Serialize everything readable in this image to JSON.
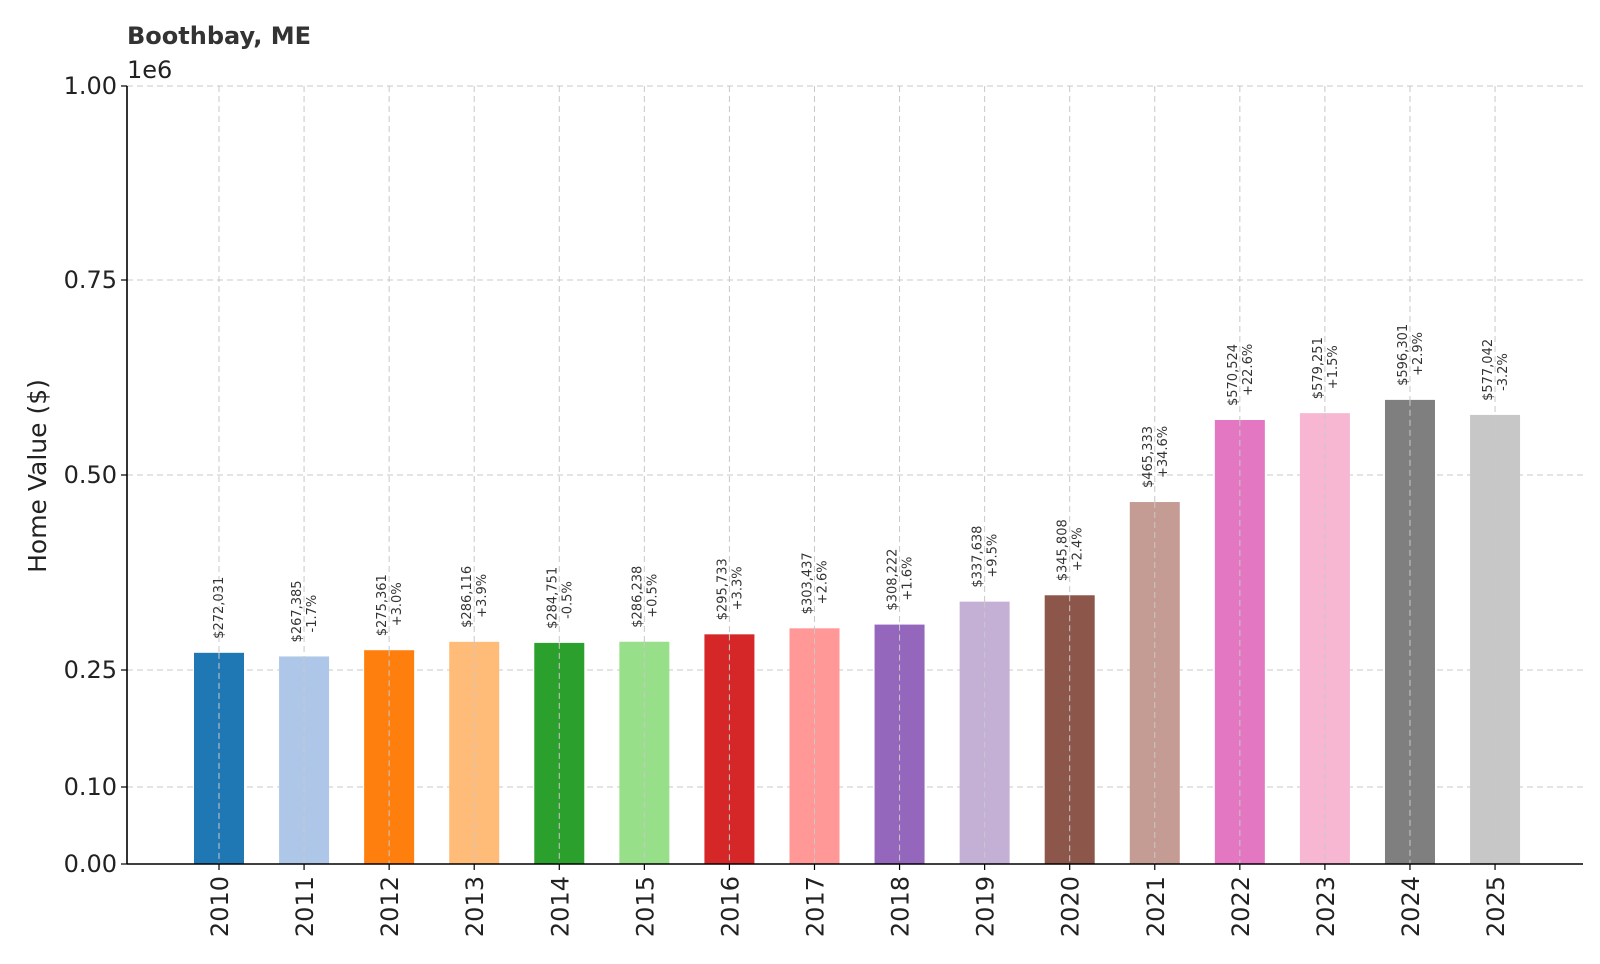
{
  "chart_data": {
    "type": "bar",
    "title": "Boothbay, ME",
    "ylabel": "Home Value ($)",
    "xlabel": "",
    "y_scale_label": "1e6",
    "ylim": [
      0,
      1000000
    ],
    "y_tick_values": [
      0,
      100000,
      250000,
      500000,
      750000,
      1000000
    ],
    "y_tick_labels": [
      "0.00",
      "0.10",
      "0.25",
      "0.50",
      "0.75",
      "1.00"
    ],
    "grid": true,
    "categories": [
      "2010",
      "2011",
      "2012",
      "2013",
      "2014",
      "2015",
      "2016",
      "2017",
      "2018",
      "2019",
      "2020",
      "2021",
      "2022",
      "2023",
      "2024",
      "2025"
    ],
    "values": [
      272031,
      267385,
      275361,
      286116,
      284751,
      286238,
      295733,
      303437,
      308222,
      337638,
      345808,
      465333,
      570524,
      579251,
      596301,
      577042
    ],
    "value_labels": [
      "$272,031",
      "$267,385",
      "$275,361",
      "$286,116",
      "$284,751",
      "$286,238",
      "$295,733",
      "$303,437",
      "$308,222",
      "$337,638",
      "$345,808",
      "$465,333",
      "$570,524",
      "$579,251",
      "$596,301",
      "$577,042"
    ],
    "change_labels": [
      "",
      "-1.7%",
      "+3.0%",
      "+3.9%",
      "-0.5%",
      "+0.5%",
      "+3.3%",
      "+2.6%",
      "+1.6%",
      "+9.5%",
      "+2.4%",
      "+34.6%",
      "+22.6%",
      "+1.5%",
      "+2.9%",
      "-3.2%"
    ],
    "colors": [
      "#1f77b4",
      "#aec7e8",
      "#ff7f0e",
      "#ffbb78",
      "#2ca02c",
      "#98df8a",
      "#d62728",
      "#ff9896",
      "#9467bd",
      "#c5b0d5",
      "#8c564b",
      "#c49c94",
      "#e377c2",
      "#f7b6d2",
      "#7f7f7f",
      "#c7c7c7"
    ]
  }
}
